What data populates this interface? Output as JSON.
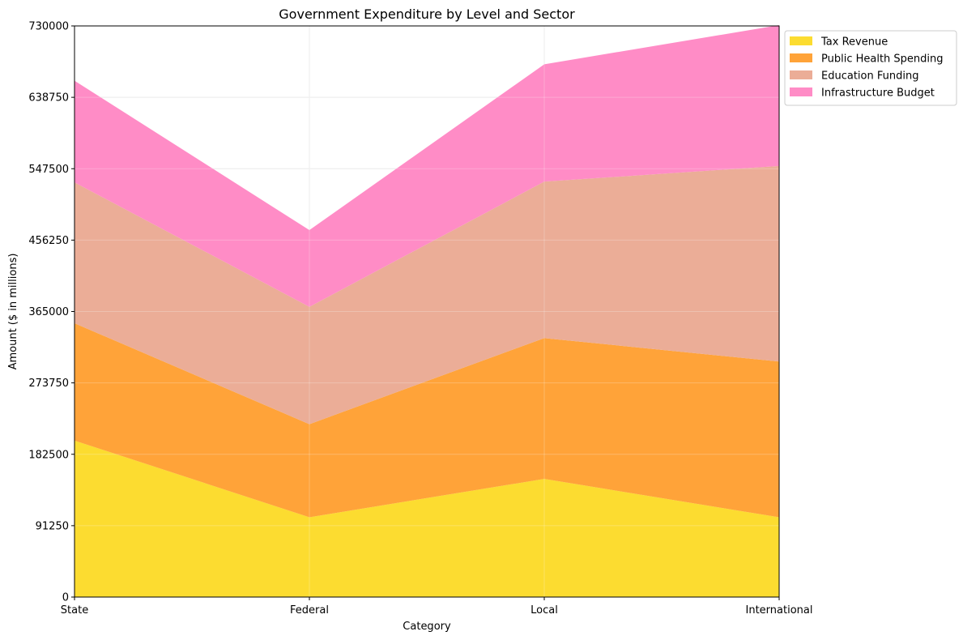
{
  "chart_data": {
    "type": "area",
    "stacked": true,
    "title": "Government Expenditure by Level and Sector",
    "xlabel": "Category",
    "ylabel": "Amount ($ in millions)",
    "categories": [
      "State",
      "Federal",
      "Local",
      "International"
    ],
    "ylim": [
      0,
      730000
    ],
    "yticks": [
      "0",
      "91250",
      "182500",
      "273750",
      "365000",
      "456250",
      "547500",
      "638750",
      "730000"
    ],
    "grid": true,
    "legend_position": "upper-right-outside",
    "series": [
      {
        "name": "Tax Revenue",
        "color": "#fcd81a",
        "values": [
          200000,
          102000,
          151000,
          102000
        ]
      },
      {
        "name": "Public Health Spending",
        "color": "#ff9924",
        "values": [
          150000,
          119000,
          180000,
          199000
        ]
      },
      {
        "name": "Education Funding",
        "color": "#e9a48c",
        "values": [
          180000,
          150000,
          200000,
          250000
        ]
      },
      {
        "name": "Infrastructure Budget",
        "color": "#ff80c0",
        "values": [
          130000,
          98000,
          150000,
          180000
        ]
      }
    ]
  }
}
